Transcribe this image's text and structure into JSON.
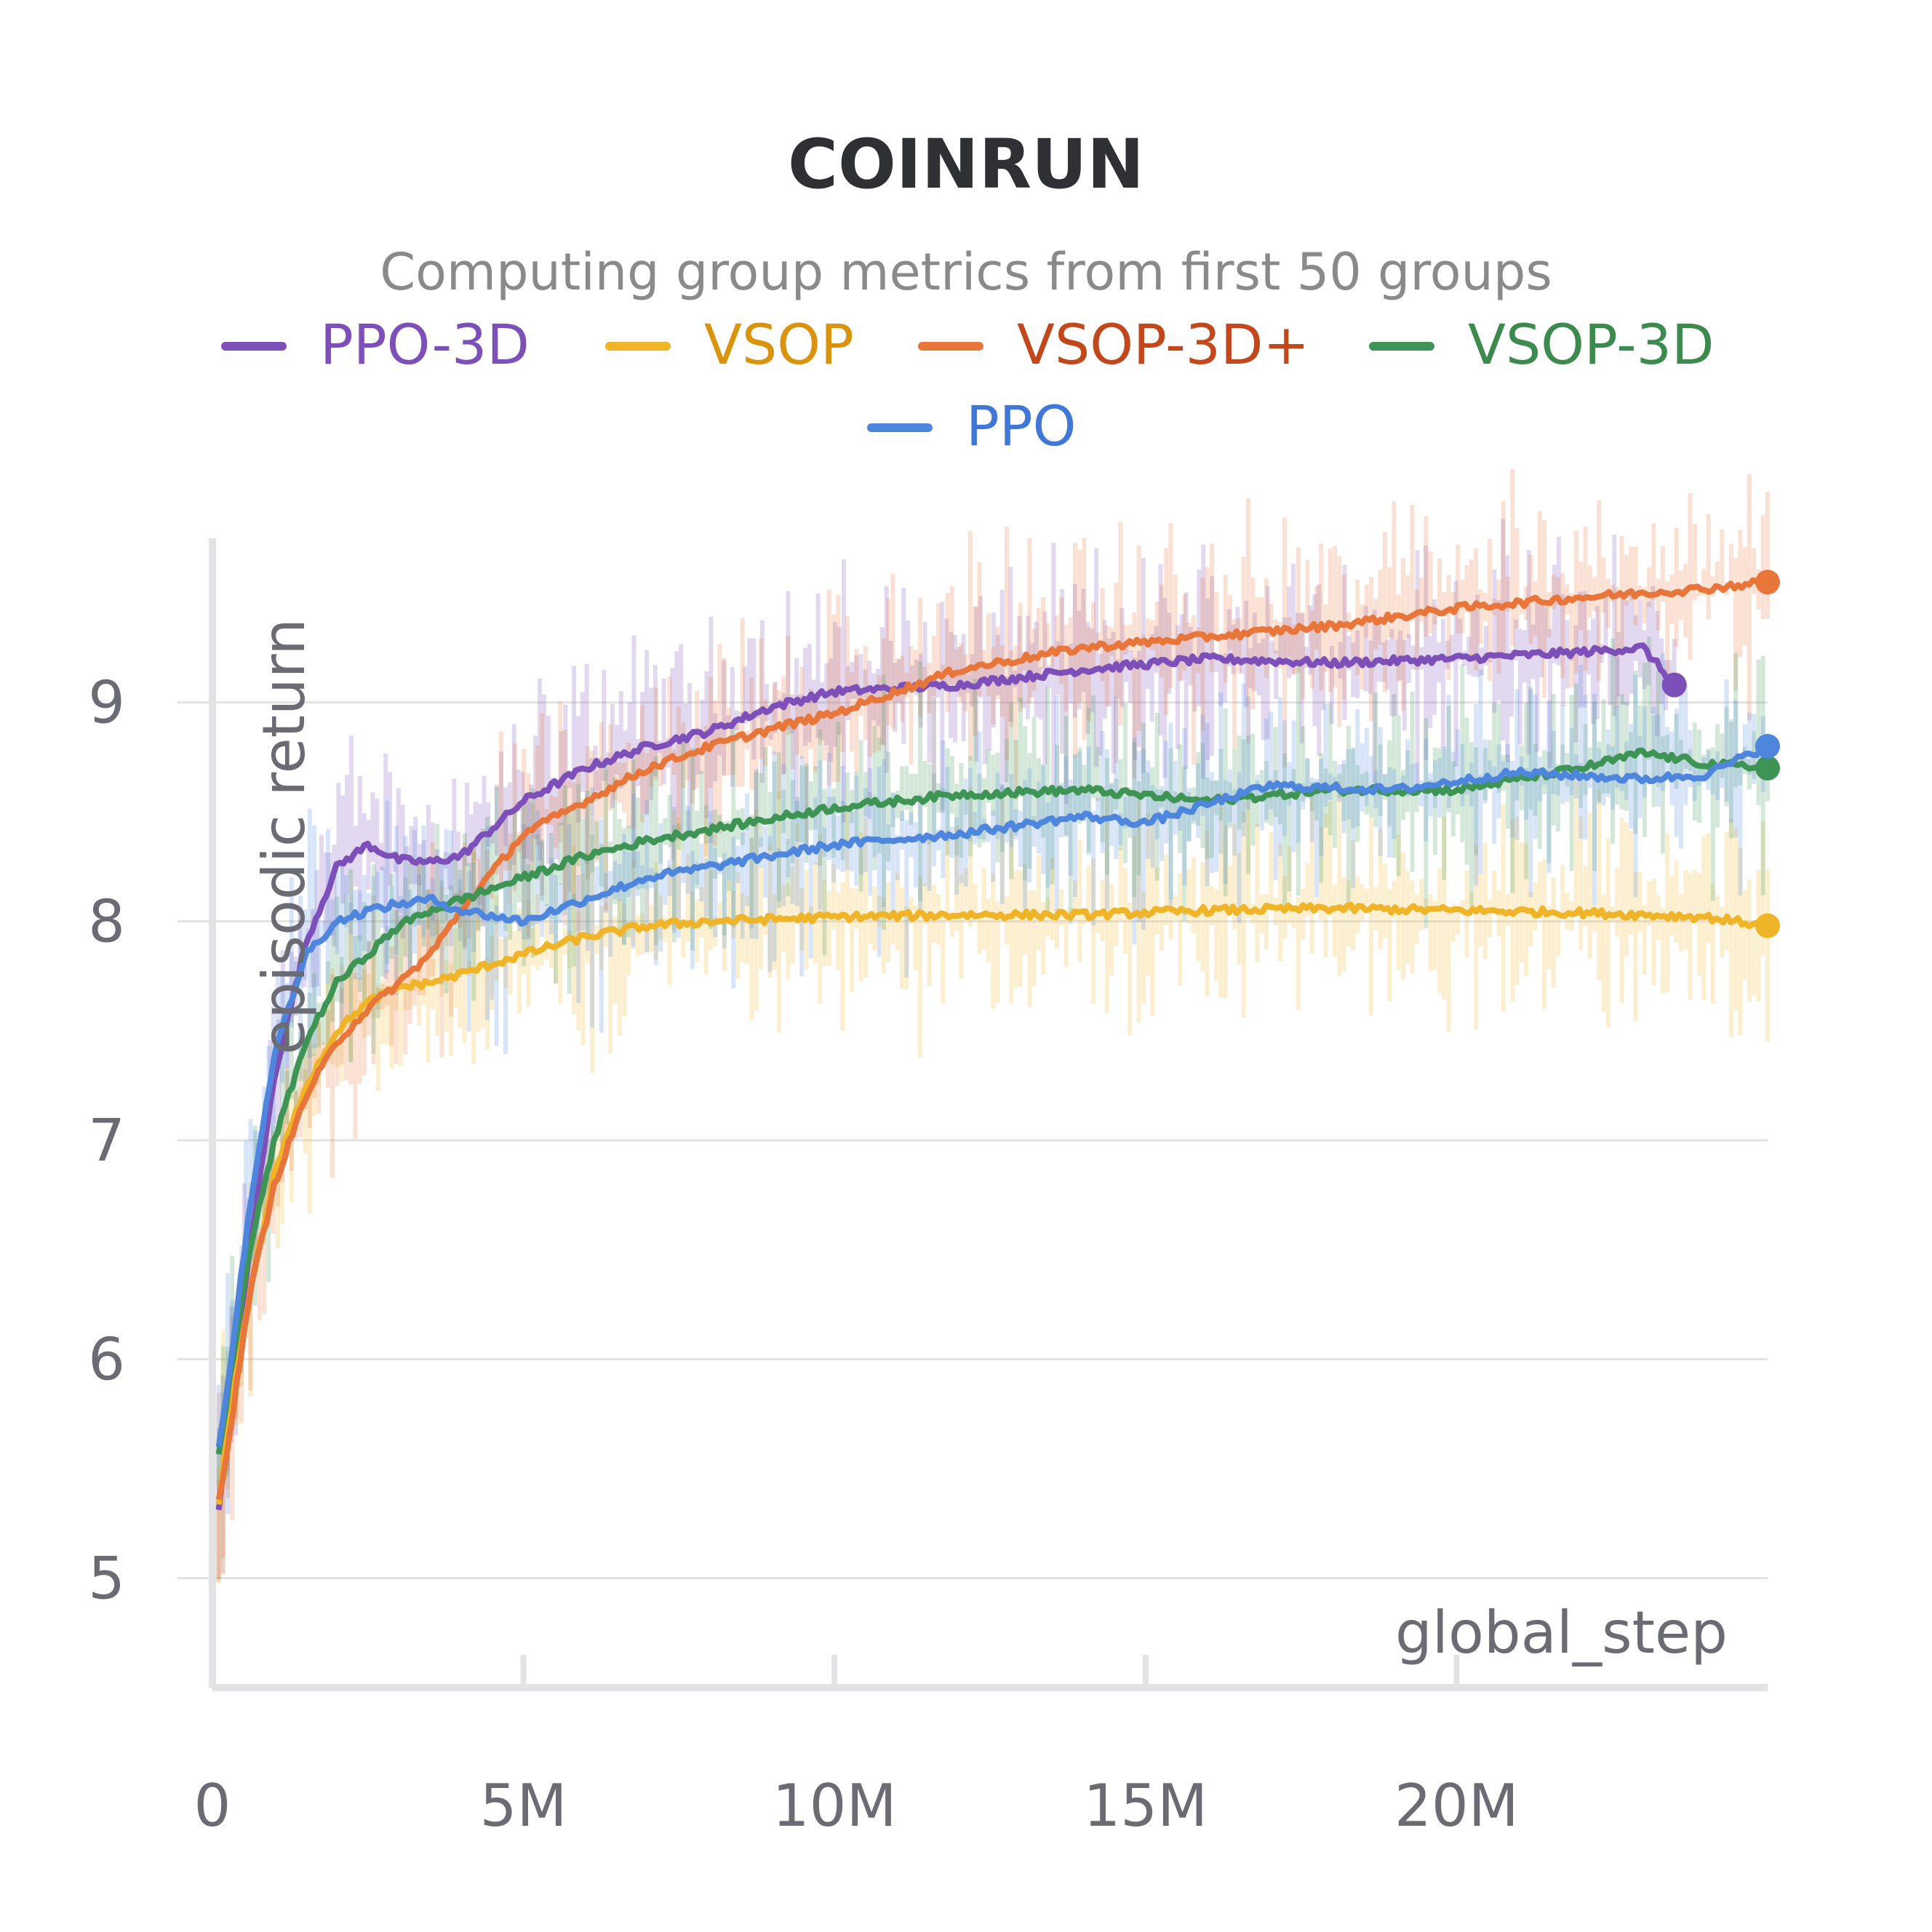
{
  "chart_data": {
    "type": "line",
    "title": "COINRUN",
    "subtitle": "Computing group metrics from first 50 groups",
    "xlabel": "global_step",
    "ylabel": "episodic return",
    "xlim": [
      0,
      25000000
    ],
    "ylim": [
      4.5,
      9.75
    ],
    "x_ticks": [
      0,
      5000000,
      10000000,
      15000000,
      20000000
    ],
    "x_tick_labels": [
      "0",
      "5M",
      "10M",
      "15M",
      "20M"
    ],
    "y_ticks": [
      5,
      6,
      7,
      8,
      9
    ],
    "y_tick_labels": [
      "5",
      "6",
      "7",
      "8",
      "9"
    ],
    "grid": true,
    "legend_position": "top",
    "series": [
      {
        "name": "PPO-3D",
        "color": "#7d4fb8",
        "text_color": "#7d4fb8",
        "x": [
          100000,
          300000,
          600000,
          1000000,
          1500000,
          2000000,
          2500000,
          3000000,
          3500000,
          4000000,
          5000000,
          6000000,
          7000000,
          8000000,
          9000000,
          10000000,
          12000000,
          14000000,
          16000000,
          18000000,
          20000000,
          22000000,
          23000000,
          23500000
        ],
        "values": [
          5.3,
          5.8,
          6.5,
          7.3,
          7.9,
          8.25,
          8.35,
          8.28,
          8.27,
          8.3,
          8.55,
          8.7,
          8.8,
          8.87,
          8.98,
          9.05,
          9.08,
          9.15,
          9.2,
          9.18,
          9.2,
          9.23,
          9.25,
          9.08
        ]
      },
      {
        "name": "VSOP",
        "color": "#f0b429",
        "text_color": "#d9930d",
        "x": [
          100000,
          300000,
          600000,
          1000000,
          1500000,
          2000000,
          2500000,
          3000000,
          3500000,
          4000000,
          5000000,
          6000000,
          7000000,
          8000000,
          10000000,
          12000000,
          14000000,
          16000000,
          18000000,
          20000000,
          22000000,
          24000000,
          25000000
        ],
        "values": [
          5.35,
          5.8,
          6.3,
          6.85,
          7.25,
          7.5,
          7.63,
          7.7,
          7.72,
          7.76,
          7.85,
          7.93,
          7.98,
          8.0,
          8.02,
          8.03,
          8.03,
          8.05,
          8.06,
          8.05,
          8.04,
          8.02,
          7.98
        ]
      },
      {
        "name": "VSOP-3D+",
        "color": "#e8763a",
        "text_color": "#c2481c",
        "x": [
          100000,
          300000,
          600000,
          1000000,
          1500000,
          2000000,
          2500000,
          3000000,
          3500000,
          4000000,
          5000000,
          6000000,
          7000000,
          8000000,
          9000000,
          10000000,
          12000000,
          14000000,
          16000000,
          18000000,
          20000000,
          22000000,
          24000000,
          25000000
        ],
        "values": [
          5.35,
          5.7,
          6.3,
          6.8,
          7.2,
          7.45,
          7.6,
          7.72,
          7.85,
          8.05,
          8.4,
          8.55,
          8.7,
          8.8,
          8.88,
          8.95,
          9.15,
          9.25,
          9.3,
          9.35,
          9.43,
          9.48,
          9.52,
          9.55
        ]
      },
      {
        "name": "VSOP-3D",
        "color": "#3d9454",
        "text_color": "#3d8a4e",
        "x": [
          100000,
          300000,
          600000,
          1000000,
          1500000,
          2000000,
          2500000,
          3000000,
          3500000,
          4000000,
          5000000,
          6000000,
          7000000,
          8000000,
          10000000,
          12000000,
          14000000,
          16000000,
          18000000,
          20000000,
          22000000,
          23000000,
          24000000,
          25000000
        ],
        "values": [
          5.55,
          5.95,
          6.5,
          7.0,
          7.45,
          7.72,
          7.85,
          7.98,
          8.05,
          8.1,
          8.2,
          8.3,
          8.37,
          8.42,
          8.52,
          8.58,
          8.6,
          8.55,
          8.6,
          8.6,
          8.7,
          8.77,
          8.72,
          8.7
        ]
      },
      {
        "name": "PPO",
        "color": "#4e86de",
        "text_color": "#3f78d6",
        "x": [
          100000,
          300000,
          600000,
          1000000,
          1500000,
          2000000,
          2500000,
          3000000,
          3500000,
          4000000,
          5000000,
          6000000,
          7000000,
          8000000,
          10000000,
          12000000,
          14000000,
          15000000,
          17000000,
          19000000,
          21000000,
          23000000,
          24000000,
          25000000
        ],
        "values": [
          5.6,
          6.0,
          6.7,
          7.4,
          7.85,
          8.0,
          8.05,
          8.08,
          8.1,
          8.05,
          8.0,
          8.1,
          8.2,
          8.25,
          8.35,
          8.4,
          8.48,
          8.45,
          8.62,
          8.6,
          8.68,
          8.65,
          8.67,
          8.8
        ]
      }
    ]
  }
}
